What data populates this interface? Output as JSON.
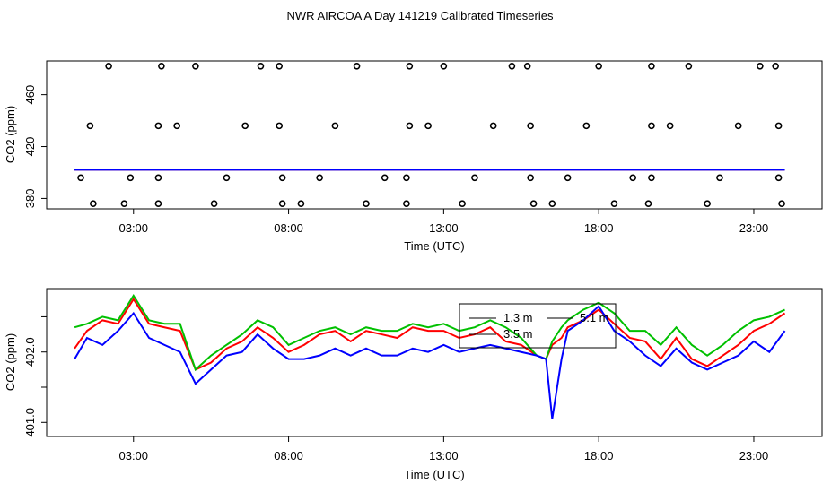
{
  "title": "NWR AIRCOA A  Day 141219  Calibrated Timeseries",
  "colors": {
    "series_1_3": "#ff0000",
    "series_3_5": "#00c000",
    "series_5_1": "#0000ff",
    "axis": "#000000",
    "markers": "#000000"
  },
  "chart_data": [
    {
      "type": "scatter",
      "title": "",
      "xlabel": "Time (UTC)",
      "ylabel": "CO2 (ppm)",
      "xlim": [
        0.2,
        25.2
      ],
      "ylim": [
        372,
        486
      ],
      "x_ticks": [
        3,
        8,
        13,
        18,
        23
      ],
      "x_tick_labels": [
        "03:00",
        "08:00",
        "13:00",
        "18:00",
        "23:00"
      ],
      "y_ticks": [
        380,
        420,
        460
      ],
      "y_tick_labels": [
        "380",
        "420",
        "460"
      ],
      "flat_series": [
        {
          "name": "1.3 m",
          "x": [
            1.1,
            24.0
          ],
          "values": [
            402,
            402
          ]
        },
        {
          "name": "3.5 m",
          "x": [
            1.1,
            24.0
          ],
          "values": [
            402.3,
            402.3
          ]
        },
        {
          "name": "5.1 m",
          "x": [
            1.1,
            24.0
          ],
          "values": [
            402,
            402
          ]
        }
      ],
      "markers": {
        "x": [
          2.2,
          3.9,
          5.0,
          7.1,
          7.7,
          10.2,
          11.9,
          13.0,
          15.2,
          15.7,
          18.0,
          19.7,
          20.9,
          23.2,
          23.7,
          1.6,
          3.8,
          4.4,
          6.6,
          7.7,
          9.5,
          11.9,
          12.5,
          14.6,
          15.8,
          17.6,
          19.7,
          20.3,
          22.5,
          23.8,
          1.3,
          2.9,
          3.8,
          6.0,
          7.8,
          9.0,
          11.1,
          11.8,
          14.0,
          15.8,
          17.0,
          19.1,
          19.7,
          21.9,
          23.8,
          1.7,
          2.7,
          3.8,
          5.6,
          7.8,
          8.4,
          10.5,
          11.8,
          13.6,
          15.9,
          16.5,
          18.5,
          19.6,
          21.5,
          23.9
        ],
        "values": [
          482,
          482,
          482,
          482,
          482,
          482,
          482,
          482,
          482,
          482,
          482,
          482,
          482,
          482,
          482,
          436,
          436,
          436,
          436,
          436,
          436,
          436,
          436,
          436,
          436,
          436,
          436,
          436,
          436,
          436,
          396,
          396,
          396,
          396,
          396,
          396,
          396,
          396,
          396,
          396,
          396,
          396,
          396,
          396,
          396,
          376,
          376,
          376,
          376,
          376,
          376,
          376,
          376,
          376,
          376,
          376,
          376,
          376,
          376,
          376
        ]
      }
    },
    {
      "type": "line",
      "title": "",
      "xlabel": "Time (UTC)",
      "ylabel": "CO2 (ppm)",
      "xlim": [
        0.2,
        25.2
      ],
      "ylim": [
        400.8,
        402.9
      ],
      "x_ticks": [
        3,
        8,
        13,
        18,
        23
      ],
      "x_tick_labels": [
        "03:00",
        "08:00",
        "13:00",
        "18:00",
        "23:00"
      ],
      "y_ticks": [
        401.0,
        401.5,
        402.0,
        402.5
      ],
      "y_tick_labels": [
        "401.0",
        "",
        "402.0",
        ""
      ],
      "legend": {
        "position": "top-center",
        "entries": [
          "1.3 m",
          "3.5 m",
          "5.1 m"
        ]
      },
      "x": [
        1.1,
        1.5,
        2.0,
        2.5,
        3.0,
        3.5,
        4.0,
        4.5,
        5.0,
        5.5,
        6.0,
        6.5,
        7.0,
        7.5,
        8.0,
        8.5,
        9.0,
        9.5,
        10.0,
        10.5,
        11.0,
        11.5,
        12.0,
        12.5,
        13.0,
        13.5,
        14.0,
        14.5,
        15.0,
        15.5,
        16.0,
        16.3,
        16.5,
        16.8,
        17.0,
        17.5,
        18.0,
        18.5,
        19.0,
        19.5,
        20.0,
        20.5,
        21.0,
        21.5,
        22.0,
        22.5,
        23.0,
        23.5,
        24.0
      ],
      "series": [
        {
          "name": "1.3 m",
          "color": "#ff0000",
          "values": [
            402.05,
            402.3,
            402.45,
            402.4,
            402.75,
            402.4,
            402.35,
            402.3,
            401.75,
            401.85,
            402.05,
            402.15,
            402.35,
            402.2,
            402.0,
            402.1,
            402.25,
            402.3,
            402.15,
            402.3,
            402.25,
            402.2,
            402.35,
            402.3,
            402.3,
            402.2,
            402.25,
            402.35,
            402.15,
            402.1,
            401.95,
            401.9,
            402.1,
            402.2,
            402.35,
            402.45,
            402.6,
            402.4,
            402.2,
            402.15,
            401.9,
            402.2,
            401.9,
            401.8,
            401.95,
            402.1,
            402.3,
            402.4,
            402.55
          ]
        },
        {
          "name": "3.5 m",
          "color": "#00c000",
          "values": [
            402.35,
            402.4,
            402.5,
            402.45,
            402.8,
            402.45,
            402.4,
            402.4,
            401.75,
            401.95,
            402.1,
            402.25,
            402.45,
            402.35,
            402.1,
            402.2,
            402.3,
            402.35,
            402.25,
            402.35,
            402.3,
            402.3,
            402.4,
            402.35,
            402.4,
            402.3,
            402.35,
            402.45,
            402.35,
            402.2,
            401.95,
            401.9,
            402.15,
            402.35,
            402.45,
            402.6,
            402.7,
            402.55,
            402.3,
            402.3,
            402.1,
            402.35,
            402.1,
            401.95,
            402.1,
            402.3,
            402.45,
            402.5,
            402.6
          ]
        },
        {
          "name": "5.1 m",
          "color": "#0000ff",
          "values": [
            401.9,
            402.2,
            402.1,
            402.3,
            402.55,
            402.2,
            402.1,
            402.0,
            401.55,
            401.75,
            401.95,
            402.0,
            402.25,
            402.05,
            401.9,
            401.9,
            401.95,
            402.05,
            401.95,
            402.05,
            401.95,
            401.95,
            402.05,
            402.0,
            402.1,
            402.0,
            402.05,
            402.1,
            402.05,
            402.0,
            401.95,
            401.9,
            401.05,
            401.9,
            402.3,
            402.45,
            402.65,
            402.3,
            402.15,
            401.95,
            401.8,
            402.05,
            401.85,
            401.75,
            401.85,
            401.95,
            402.15,
            402.0,
            402.3
          ]
        }
      ]
    }
  ]
}
